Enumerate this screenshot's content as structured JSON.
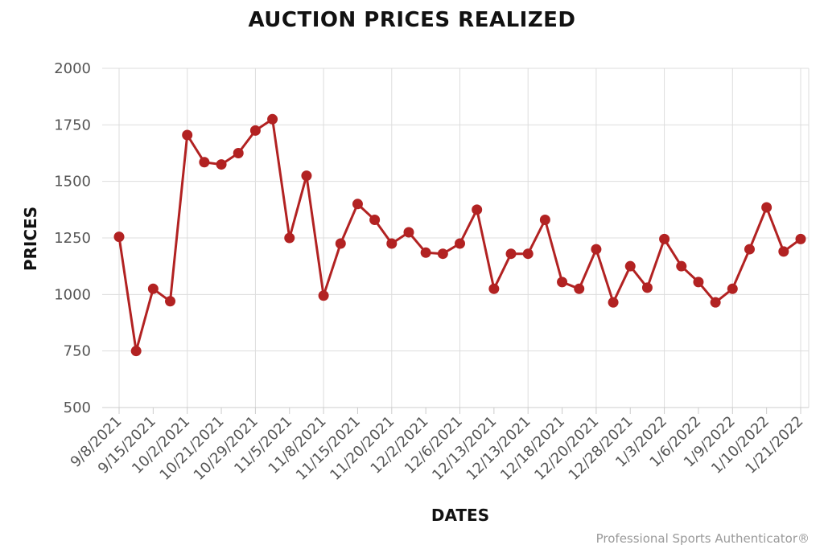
{
  "title": "AUCTION PRICES REALIZED",
  "credit": "Professional Sports Authenticator®",
  "colors": {
    "line": "#b22222",
    "marker": "#b22222",
    "grid": "#dddddd"
  },
  "chart_data": {
    "type": "line",
    "title": "AUCTION PRICES REALIZED",
    "xlabel": "DATES",
    "ylabel": "PRICES",
    "ylim": [
      500,
      2000
    ],
    "yticks": [
      500,
      750,
      1000,
      1250,
      1500,
      1750,
      2000
    ],
    "grid": true,
    "x_tick_labels": [
      "9/8/2021",
      "9/15/2021",
      "10/2/2021",
      "10/21/2021",
      "10/29/2021",
      "11/5/2021",
      "11/8/2021",
      "11/15/2021",
      "11/20/2021",
      "12/2/2021",
      "12/6/2021",
      "12/13/2021",
      "12/13/2021",
      "12/18/2021",
      "12/20/2021",
      "12/28/2021",
      "1/3/2022",
      "1/6/2022",
      "1/9/2022",
      "1/10/2022",
      "1/21/2022"
    ],
    "values": [
      1255,
      750,
      1025,
      970,
      1705,
      1585,
      1575,
      1625,
      1725,
      1775,
      1250,
      1525,
      995,
      1225,
      1400,
      1330,
      1225,
      1275,
      1185,
      1180,
      1225,
      1375,
      1025,
      1180,
      1180,
      1330,
      1055,
      1025,
      1200,
      965,
      1125,
      1030,
      1245,
      1125,
      1055,
      965,
      1025,
      1200,
      1385,
      1190,
      1245
    ]
  }
}
